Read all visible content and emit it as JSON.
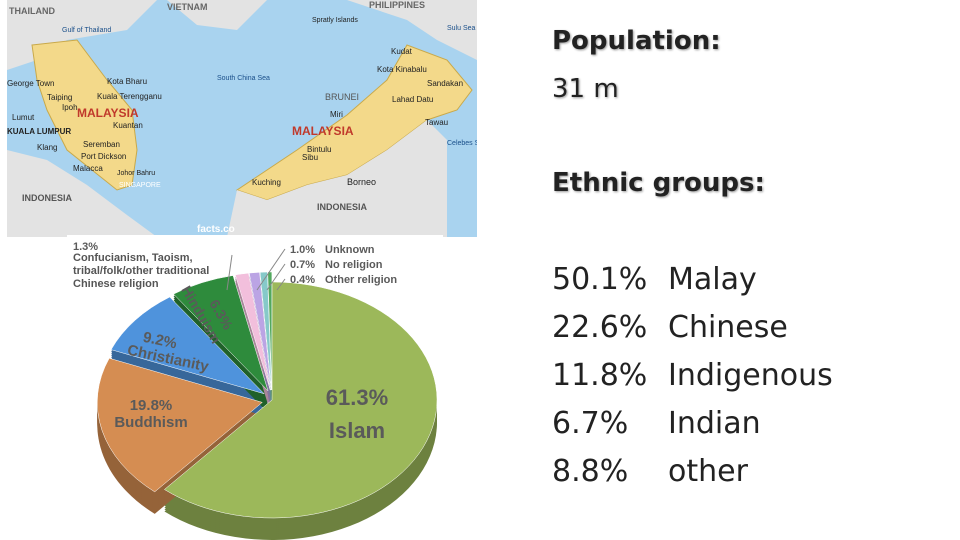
{
  "map": {
    "labels": [
      "THAILAND",
      "VIETNAM",
      "PHILIPPINES",
      "Gulf of Thailand",
      "Spratly Islands",
      "Sulu Sea",
      "Kudat",
      "Kota Bharu",
      "Kota Kinabalu",
      "Kuala Terengganu",
      "South China Sea",
      "George Town",
      "Taiping",
      "Ipoh",
      "MALAYSIA",
      "Lumut",
      "KUALA LUMPUR",
      "Kuantan",
      "BRUNEI",
      "Miri",
      "Lahad Datu",
      "Sandakan",
      "Tawau",
      "MALAYSIA",
      "Klang",
      "Seremban",
      "Port Dickson",
      "Malacca",
      "Bintulu",
      "Sibu",
      "Celebes Sea",
      "Johor Bahru",
      "SINGAPORE",
      "INDONESIA",
      "Kuching",
      "Borneo",
      "INDONESIA",
      "facts.co"
    ]
  },
  "chart_data": {
    "type": "pie",
    "categories": [
      "Islam",
      "Buddhism",
      "Christianity",
      "Hinduism",
      "Confucianism, Taoism, tribal/folk/other traditional Chinese religion",
      "Unknown",
      "No religion",
      "Other religion"
    ],
    "values": [
      61.3,
      19.8,
      9.2,
      6.3,
      1.3,
      1.0,
      0.7,
      0.4
    ],
    "value_labels": [
      "61.3%",
      "19.8%",
      "9.2%",
      "6.3%",
      "1.3%",
      "1.0%",
      "0.7%",
      "0.4%"
    ],
    "colors": [
      "#9cb85a",
      "#d58d52",
      "#4f93dc",
      "#2e8b3c",
      "#f2bfdc",
      "#bba4e4",
      "#86c9c9",
      "#52a85d"
    ]
  },
  "facts": {
    "population_label": "Population:",
    "population_value": "31 m",
    "ethnic_label": "Ethnic groups:",
    "ethnic_rows": [
      [
        "50.1%",
        "Malay"
      ],
      [
        "22.6%",
        "Chinese"
      ],
      [
        "11.8%",
        "Indigenous"
      ],
      [
        "6.7%",
        "Indian"
      ],
      [
        "8.8%",
        "other"
      ]
    ]
  }
}
